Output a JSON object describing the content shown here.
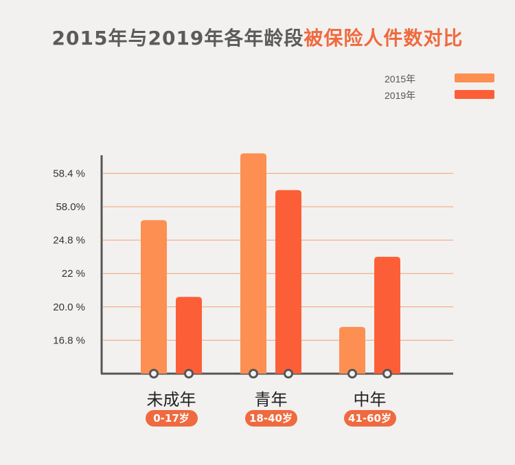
{
  "title": {
    "part1": "2015年与2019年各年龄段",
    "part2": "被保险人件数对比"
  },
  "colors": {
    "title_gray": "#5b5b5b",
    "accent": "#ef6a3f",
    "s2015": "#fd8f52",
    "s2019": "#fc5f37",
    "grid": "#f2a17a",
    "axis": "#555555"
  },
  "legend": [
    {
      "label": "2015年",
      "color": "#fd8f52"
    },
    {
      "label": "2019年",
      "color": "#fc5f37"
    }
  ],
  "chart_data": {
    "type": "bar",
    "title": "2015年与2019年各年龄段被保险人件数对比",
    "categories": [
      "未成年",
      "青年",
      "中年"
    ],
    "category_sublabels": [
      "0-17岁",
      "18-40岁",
      "41-60岁"
    ],
    "yticks": [
      "58.4 %",
      "58.0%",
      "24.8 %",
      "22 %",
      "20.0 %",
      "16.8 %"
    ],
    "series": [
      {
        "name": "2015年",
        "values": [
          4.6,
          6.6,
          1.4
        ]
      },
      {
        "name": "2019年",
        "values": [
          2.3,
          5.5,
          3.5
        ]
      }
    ],
    "value_note": "bars drawn on an unlabeled gridline scale (0 = axis base, each gridline = 1 step, top gridline = 6)",
    "ylim": [
      0,
      6.5
    ],
    "grid": true,
    "legend_position": "top-right"
  }
}
